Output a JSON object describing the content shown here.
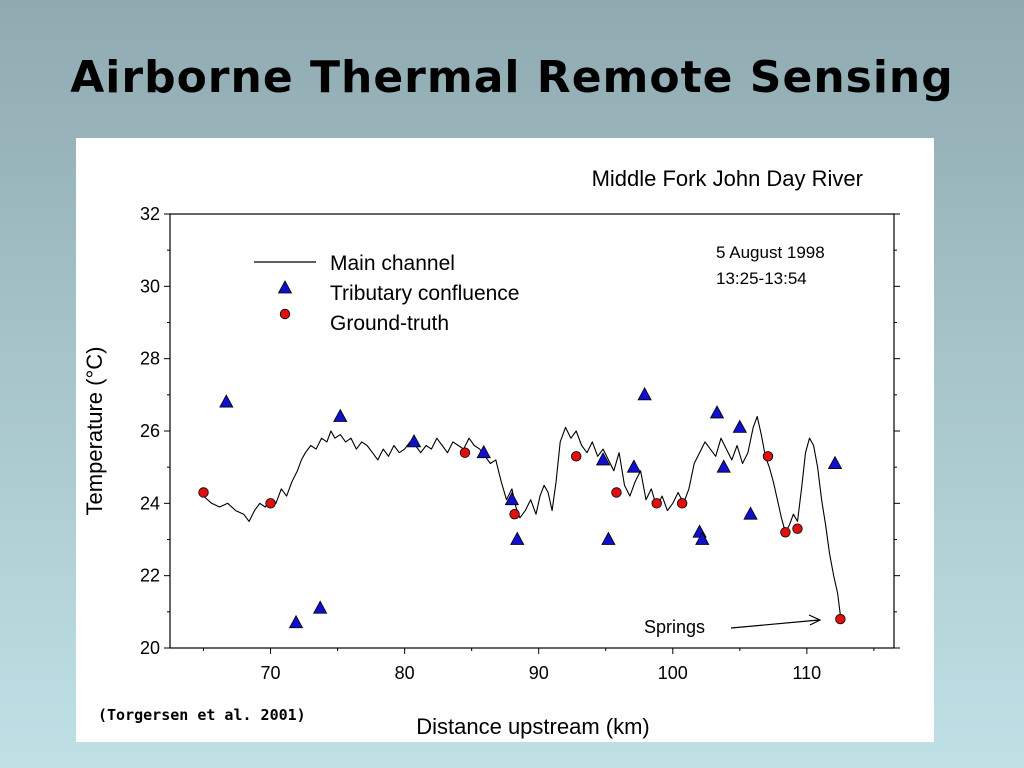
{
  "slide": {
    "title": "Airborne Thermal Remote Sensing"
  },
  "colors": {
    "background_top": "#8faab0",
    "background_bottom": "#bfe1e6",
    "tributary_marker": "#1010cc",
    "ground_truth_marker": "#e01010",
    "main_channel_line": "#000000"
  },
  "chart_data": {
    "type": "line",
    "title": "Middle Fork John Day River",
    "xlabel": "Distance upstream (km)",
    "ylabel": "Temperature (°C)",
    "xlim": [
      62.5,
      116.5
    ],
    "ylim": [
      20,
      32
    ],
    "xticks": [
      70,
      80,
      90,
      100,
      110
    ],
    "yticks": [
      20,
      22,
      24,
      26,
      28,
      30,
      32
    ],
    "grid": false,
    "legend_position": "top-left",
    "annotation_date": "5 August 1998",
    "annotation_time": "13:25-13:54",
    "springs_label": "Springs",
    "citation": "(Torgersen et al. 2001)",
    "series": [
      {
        "name": "Main channel",
        "marker": "line",
        "x": [
          65.0,
          65.6,
          66.2,
          66.8,
          67.4,
          68.0,
          68.4,
          68.8,
          69.2,
          69.6,
          70.0,
          70.4,
          70.8,
          71.2,
          71.6,
          72.0,
          72.3,
          72.6,
          73.0,
          73.4,
          73.8,
          74.2,
          74.5,
          74.8,
          75.2,
          75.6,
          76.0,
          76.4,
          76.8,
          77.2,
          77.6,
          78.0,
          78.4,
          78.8,
          79.2,
          79.6,
          80.0,
          80.4,
          80.8,
          81.2,
          81.6,
          82.0,
          82.4,
          82.8,
          83.2,
          83.6,
          84.0,
          84.4,
          84.8,
          85.2,
          85.6,
          86.0,
          86.4,
          86.8,
          87.2,
          87.6,
          88.0,
          88.3,
          88.6,
          89.0,
          89.4,
          89.8,
          90.1,
          90.4,
          90.7,
          91.0,
          91.3,
          91.6,
          92.0,
          92.4,
          92.8,
          93.2,
          93.6,
          94.0,
          94.4,
          94.8,
          95.2,
          95.6,
          96.0,
          96.4,
          96.8,
          97.2,
          97.6,
          98.0,
          98.4,
          98.8,
          99.2,
          99.6,
          100.0,
          100.4,
          100.8,
          101.2,
          101.6,
          102.0,
          102.4,
          102.8,
          103.2,
          103.6,
          104.0,
          104.4,
          104.8,
          105.2,
          105.6,
          106.0,
          106.3,
          106.6,
          106.9,
          107.2,
          107.5,
          107.8,
          108.1,
          108.4,
          108.7,
          109.0,
          109.3,
          109.6,
          109.9,
          110.2,
          110.5,
          110.8,
          111.1,
          111.4,
          111.7,
          112.0,
          112.3,
          112.5,
          112.7
        ],
        "y": [
          24.2,
          24.0,
          23.9,
          24.0,
          23.8,
          23.7,
          23.5,
          23.8,
          24.0,
          23.9,
          24.1,
          24.0,
          24.4,
          24.2,
          24.6,
          24.9,
          25.2,
          25.4,
          25.6,
          25.5,
          25.8,
          25.7,
          26.0,
          25.8,
          25.9,
          25.7,
          25.8,
          25.5,
          25.7,
          25.6,
          25.4,
          25.2,
          25.5,
          25.3,
          25.6,
          25.4,
          25.5,
          25.7,
          25.6,
          25.4,
          25.6,
          25.5,
          25.8,
          25.6,
          25.4,
          25.7,
          25.6,
          25.5,
          25.8,
          25.6,
          25.5,
          25.3,
          25.1,
          25.2,
          24.6,
          24.1,
          24.4,
          23.9,
          23.6,
          23.8,
          24.1,
          23.7,
          24.2,
          24.5,
          24.3,
          23.8,
          24.6,
          25.7,
          26.1,
          25.8,
          26.0,
          25.6,
          25.4,
          25.7,
          25.3,
          25.5,
          25.2,
          24.9,
          25.4,
          24.5,
          24.2,
          24.6,
          24.9,
          24.1,
          24.4,
          23.9,
          24.2,
          23.8,
          24.0,
          24.3,
          24.0,
          24.4,
          25.1,
          25.4,
          25.7,
          25.5,
          25.3,
          25.8,
          25.5,
          25.2,
          25.6,
          25.1,
          25.4,
          26.1,
          26.4,
          25.9,
          25.3,
          25.0,
          24.6,
          24.1,
          23.6,
          23.2,
          23.4,
          23.7,
          23.5,
          24.4,
          25.4,
          25.8,
          25.6,
          25.0,
          24.1,
          23.4,
          22.6,
          22.0,
          21.5,
          20.9,
          20.7
        ]
      },
      {
        "name": "Tributary confluence",
        "marker": "triangle",
        "x": [
          66.7,
          71.9,
          73.7,
          75.2,
          80.7,
          85.9,
          88.0,
          88.4,
          94.8,
          95.2,
          97.1,
          97.9,
          102.0,
          102.2,
          103.3,
          103.8,
          105.0,
          105.8,
          112.1
        ],
        "y": [
          26.8,
          20.7,
          21.1,
          26.4,
          25.7,
          25.4,
          24.1,
          23.0,
          25.2,
          23.0,
          25.0,
          27.0,
          23.2,
          23.0,
          26.5,
          25.0,
          26.1,
          23.7,
          25.1
        ]
      },
      {
        "name": "Ground-truth",
        "marker": "circle",
        "x": [
          65.0,
          70.0,
          84.5,
          88.2,
          92.8,
          95.8,
          98.8,
          100.7,
          107.1,
          108.4,
          109.3,
          112.5
        ],
        "y": [
          24.3,
          24.0,
          25.4,
          23.7,
          25.3,
          24.3,
          24.0,
          24.0,
          25.3,
          23.2,
          23.3,
          20.8
        ]
      }
    ]
  }
}
